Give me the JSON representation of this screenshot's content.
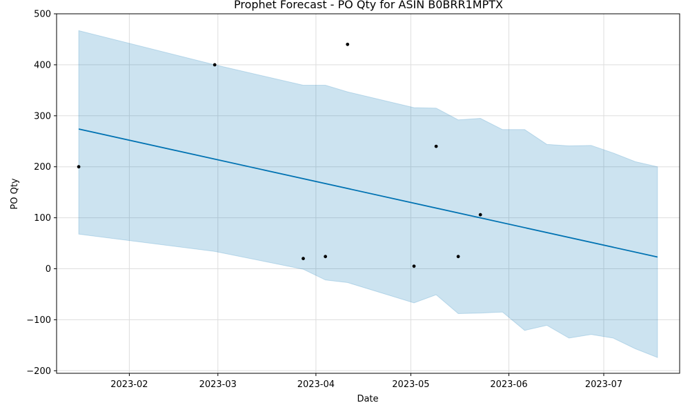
{
  "chart_data": {
    "type": "line",
    "title": "Prophet Forecast - PO Qty for ASIN B0BRR1MPTX",
    "xlabel": "Date",
    "ylabel": "PO Qty",
    "ylim": [
      -205,
      500
    ],
    "xlim": [
      "2023-01-09",
      "2023-07-25"
    ],
    "grid": true,
    "x_ticks": [
      {
        "date": "2023-02-01",
        "label": "2023-02"
      },
      {
        "date": "2023-03-01",
        "label": "2023-03"
      },
      {
        "date": "2023-04-01",
        "label": "2023-04"
      },
      {
        "date": "2023-05-01",
        "label": "2023-05"
      },
      {
        "date": "2023-06-01",
        "label": "2023-06"
      },
      {
        "date": "2023-07-01",
        "label": "2023-07"
      }
    ],
    "y_ticks": [
      -200,
      -100,
      0,
      100,
      200,
      300,
      400,
      500
    ],
    "y_tick_labels": [
      "−200",
      "−100",
      "0",
      "100",
      "200",
      "300",
      "400",
      "500"
    ],
    "colors": {
      "forecast_line": "#0072B2",
      "interval_fill": "#0072B2",
      "points": "#000000",
      "grid": "#dddddd"
    },
    "series": [
      {
        "kind": "interval",
        "x": [
          "2023-01-16",
          "2023-02-28",
          "2023-03-28",
          "2023-04-04",
          "2023-04-11",
          "2023-05-02",
          "2023-05-09",
          "2023-05-16",
          "2023-05-23",
          "2023-05-30",
          "2023-06-06",
          "2023-06-13",
          "2023-06-20",
          "2023-06-27",
          "2023-07-04",
          "2023-07-11",
          "2023-07-18"
        ],
        "upper": [
          467,
          400,
          360,
          360,
          347,
          316,
          315,
          292,
          295,
          273,
          273,
          244,
          241,
          242,
          227,
          210,
          200
        ],
        "lower": [
          68,
          34,
          -1,
          -22,
          -27,
          -67,
          -51,
          -88,
          -87,
          -85,
          -121,
          -111,
          -136,
          -129,
          -136,
          -157,
          -174
        ]
      },
      {
        "kind": "forecast",
        "x": [
          "2023-01-16",
          "2023-07-18"
        ],
        "y": [
          274,
          23
        ]
      },
      {
        "kind": "observed",
        "x": [
          "2023-01-16",
          "2023-02-28",
          "2023-03-28",
          "2023-04-04",
          "2023-04-11",
          "2023-05-02",
          "2023-05-09",
          "2023-05-16",
          "2023-05-23"
        ],
        "y": [
          200,
          400,
          20,
          24,
          440,
          5,
          240,
          24,
          106
        ]
      }
    ]
  }
}
